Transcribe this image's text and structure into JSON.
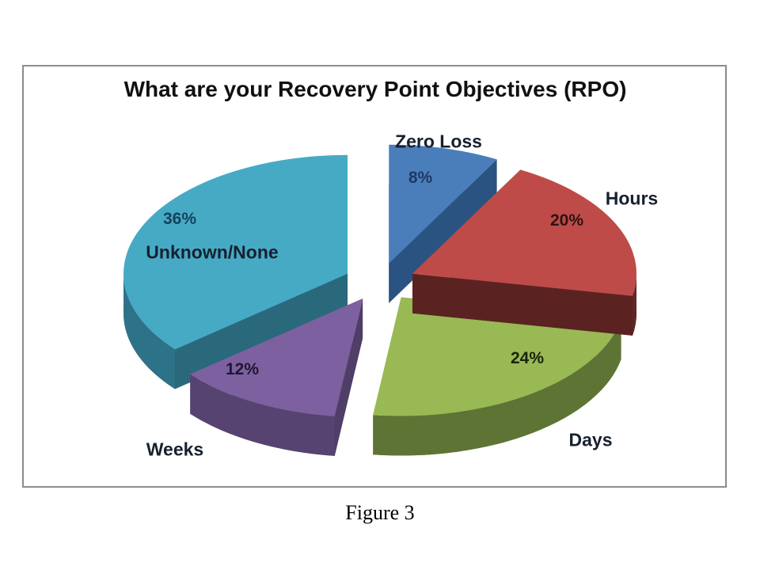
{
  "chart_data": {
    "type": "pie",
    "title": "What are your Recovery Point Objectives (RPO)",
    "labels": [
      "Zero Loss",
      "Hours",
      "Days",
      "Weeks",
      "Unknown/None"
    ],
    "values": [
      8,
      20,
      24,
      12,
      36
    ],
    "pct_labels": [
      "8%",
      "20%",
      "24%",
      "12%",
      "36%"
    ],
    "colors": [
      "#4a7ebb",
      "#be4b48",
      "#98b954",
      "#7d60a0",
      "#46aac5"
    ],
    "side_colors": [
      "#2f5a8c",
      "#622624",
      "#5e7434",
      "#564371",
      "#2e7287"
    ],
    "pct_label_colors": [
      "#1f3864",
      "#2a1413",
      "#1a230c",
      "#20172e",
      "#15425c"
    ],
    "effect": "3d-exploded",
    "start_angle_deg": 0,
    "direction": "clockwise",
    "legend": "none"
  },
  "figure": {
    "caption": "Figure 3"
  }
}
